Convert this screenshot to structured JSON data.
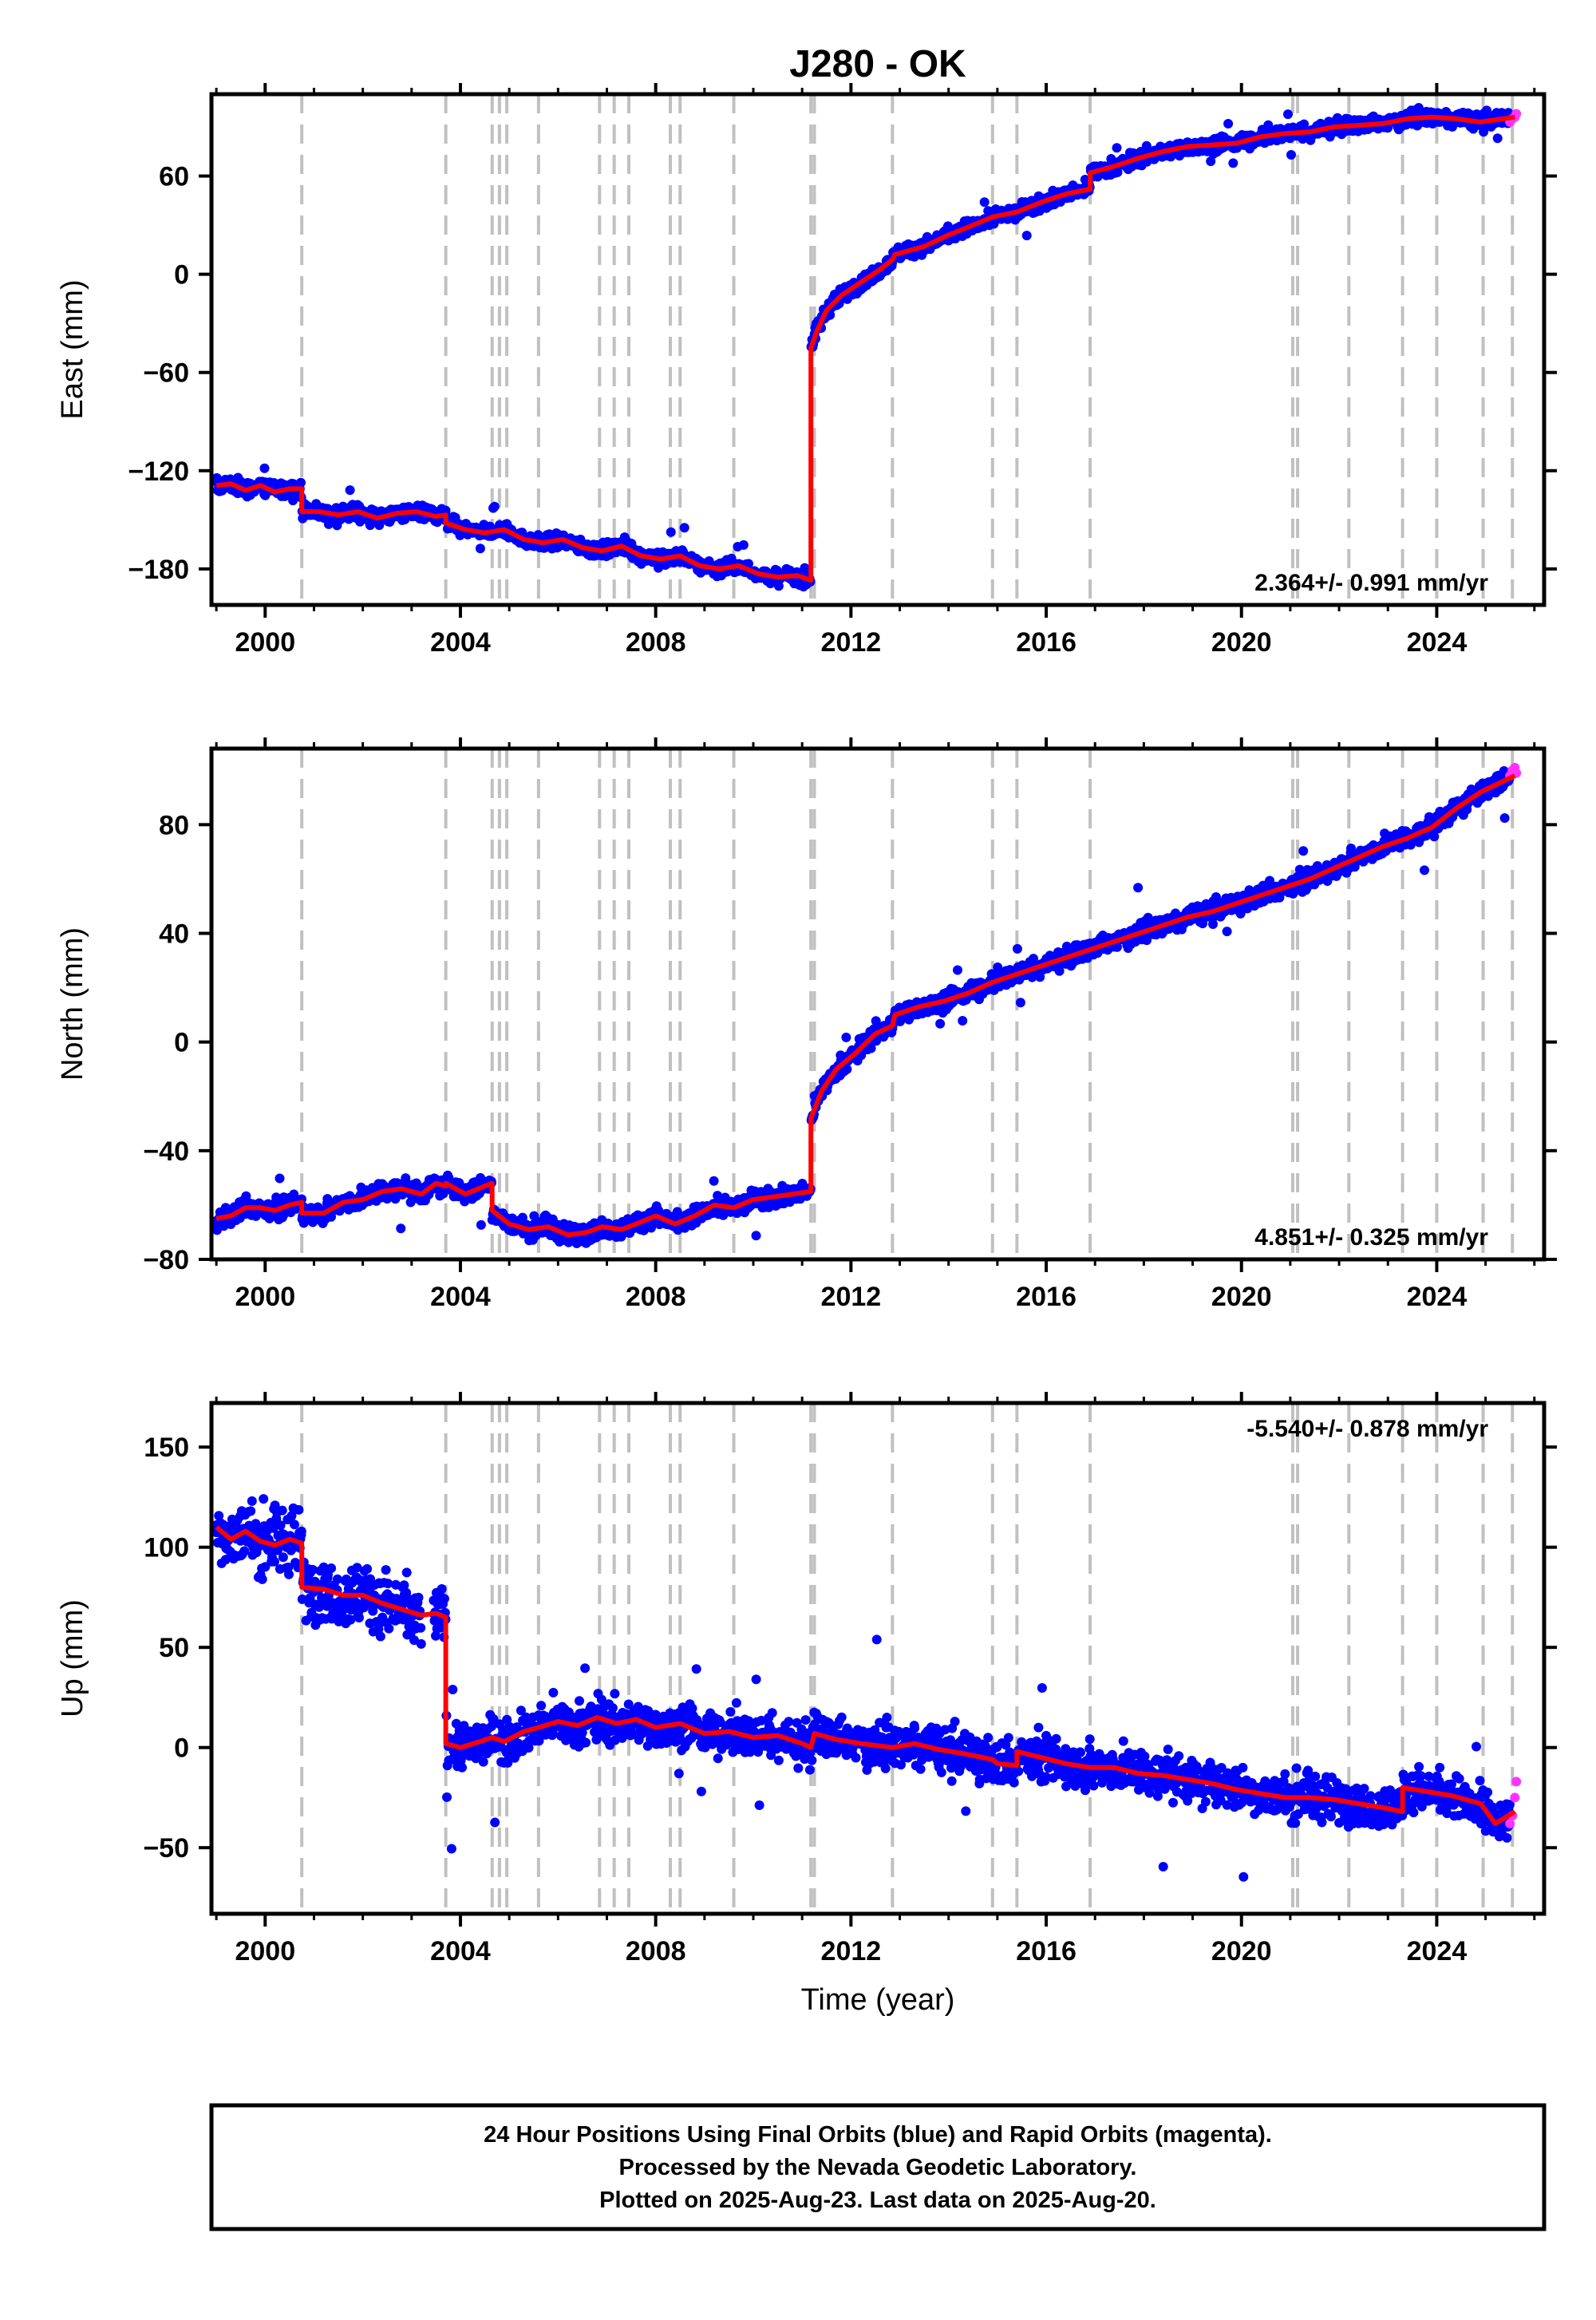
{
  "title": "J280 - OK",
  "xlabel": "Time (year)",
  "footer": {
    "line1": "24 Hour Positions Using Final Orbits (blue) and Rapid Orbits (magenta).",
    "line2": "Processed by the Nevada Geodetic Laboratory.",
    "line3": "Plotted on 2025-Aug-23. Last data on 2025-Aug-20."
  },
  "colors": {
    "final_orbits": "#0000ff",
    "rapid_orbits": "#ff33ff",
    "model": "#ff0000",
    "event_lines": "#c0c0c0"
  },
  "chart_data": [
    {
      "type": "scatter",
      "component": "East",
      "ylabel": "East (mm)",
      "xlim": [
        1998.9,
        2026.2
      ],
      "ylim": [
        -202,
        110
      ],
      "xticks": [
        2000,
        2004,
        2008,
        2012,
        2016,
        2020,
        2024
      ],
      "yticks": [
        -180,
        -120,
        -60,
        0,
        60
      ],
      "rate_label": "2.364+/- 0.991 mm/yr",
      "rate_position": "bottom-right",
      "event_lines": [
        2000.75,
        2003.7,
        2004.65,
        2004.8,
        2004.95,
        2005.6,
        2006.85,
        2007.15,
        2007.45,
        2008.3,
        2008.5,
        2009.6,
        2011.18,
        2011.25,
        2012.85,
        2014.9,
        2015.4,
        2016.9,
        2021.05,
        2021.15,
        2022.2,
        2023.3,
        2024.0,
        2024.95,
        2025.55
      ],
      "model": [
        [
          1999.0,
          -129
        ],
        [
          1999.3,
          -128
        ],
        [
          1999.6,
          -132
        ],
        [
          1999.9,
          -129
        ],
        [
          2000.2,
          -133
        ],
        [
          2000.5,
          -131
        ],
        [
          2000.75,
          -131
        ],
        [
          2000.75,
          -145
        ],
        [
          2001.1,
          -145
        ],
        [
          2001.5,
          -147
        ],
        [
          2001.9,
          -145
        ],
        [
          2002.3,
          -149
        ],
        [
          2002.7,
          -146
        ],
        [
          2003.1,
          -145
        ],
        [
          2003.5,
          -148
        ],
        [
          2003.7,
          -147
        ],
        [
          2003.7,
          -152
        ],
        [
          2004.1,
          -156
        ],
        [
          2004.5,
          -158
        ],
        [
          2004.9,
          -156
        ],
        [
          2005.3,
          -162
        ],
        [
          2005.7,
          -164
        ],
        [
          2006.1,
          -162
        ],
        [
          2006.5,
          -167
        ],
        [
          2006.9,
          -169
        ],
        [
          2007.3,
          -166
        ],
        [
          2007.7,
          -172
        ],
        [
          2008.1,
          -174
        ],
        [
          2008.5,
          -172
        ],
        [
          2008.9,
          -178
        ],
        [
          2009.3,
          -180
        ],
        [
          2009.7,
          -178
        ],
        [
          2010.1,
          -183
        ],
        [
          2010.5,
          -185
        ],
        [
          2010.9,
          -184
        ],
        [
          2011.18,
          -187
        ],
        [
          2011.18,
          -45
        ],
        [
          2011.3,
          -35
        ],
        [
          2011.5,
          -22
        ],
        [
          2011.8,
          -13
        ],
        [
          2012.2,
          -5
        ],
        [
          2012.6,
          3
        ],
        [
          2012.85,
          9
        ],
        [
          2012.9,
          12
        ],
        [
          2013.5,
          17
        ],
        [
          2014.0,
          24
        ],
        [
          2014.5,
          30
        ],
        [
          2014.9,
          35
        ],
        [
          2015.4,
          38
        ],
        [
          2015.9,
          44
        ],
        [
          2016.4,
          49
        ],
        [
          2016.9,
          52
        ],
        [
          2016.9,
          62
        ],
        [
          2017.4,
          66
        ],
        [
          2017.9,
          71
        ],
        [
          2018.4,
          75
        ],
        [
          2018.9,
          78
        ],
        [
          2019.4,
          79
        ],
        [
          2019.9,
          80
        ],
        [
          2020.4,
          84
        ],
        [
          2020.9,
          86
        ],
        [
          2021.4,
          87
        ],
        [
          2021.9,
          90
        ],
        [
          2022.4,
          91
        ],
        [
          2022.9,
          92
        ],
        [
          2023.4,
          95
        ],
        [
          2023.9,
          96
        ],
        [
          2024.4,
          95
        ],
        [
          2024.9,
          93
        ],
        [
          2025.6,
          96
        ]
      ],
      "rapid_points": [
        [
          2025.5,
          93
        ],
        [
          2025.55,
          95
        ],
        [
          2025.6,
          96
        ],
        [
          2025.63,
          98
        ]
      ]
    },
    {
      "type": "scatter",
      "component": "North",
      "ylabel": "North (mm)",
      "xlim": [
        1998.9,
        2026.2
      ],
      "ylim": [
        -80,
        108
      ],
      "xticks": [
        2000,
        2004,
        2008,
        2012,
        2016,
        2020,
        2024
      ],
      "yticks": [
        -80,
        -40,
        0,
        40,
        80
      ],
      "rate_label": "4.851+/- 0.325 mm/yr",
      "rate_position": "bottom-right",
      "event_lines": [
        2000.75,
        2003.7,
        2004.65,
        2004.8,
        2004.95,
        2005.6,
        2006.85,
        2007.15,
        2007.45,
        2008.3,
        2008.5,
        2009.6,
        2011.18,
        2011.25,
        2012.85,
        2014.9,
        2015.4,
        2016.9,
        2021.05,
        2021.15,
        2022.2,
        2023.3,
        2024.0,
        2024.95,
        2025.55
      ],
      "model": [
        [
          1999.0,
          -65
        ],
        [
          1999.3,
          -64
        ],
        [
          1999.6,
          -61
        ],
        [
          1999.9,
          -61
        ],
        [
          2000.2,
          -62
        ],
        [
          2000.5,
          -60
        ],
        [
          2000.75,
          -59
        ],
        [
          2000.75,
          -63
        ],
        [
          2001.2,
          -63
        ],
        [
          2001.6,
          -59
        ],
        [
          2002.0,
          -58
        ],
        [
          2002.4,
          -55
        ],
        [
          2002.8,
          -54
        ],
        [
          2003.2,
          -56
        ],
        [
          2003.5,
          -52
        ],
        [
          2003.7,
          -53
        ],
        [
          2003.7,
          -52
        ],
        [
          2004.1,
          -56
        ],
        [
          2004.5,
          -53
        ],
        [
          2004.65,
          -52
        ],
        [
          2004.65,
          -62
        ],
        [
          2005.0,
          -67
        ],
        [
          2005.4,
          -69
        ],
        [
          2005.8,
          -68
        ],
        [
          2006.2,
          -71
        ],
        [
          2006.6,
          -70
        ],
        [
          2006.9,
          -68
        ],
        [
          2007.3,
          -69
        ],
        [
          2007.6,
          -67
        ],
        [
          2008.0,
          -64
        ],
        [
          2008.4,
          -67
        ],
        [
          2008.8,
          -64
        ],
        [
          2009.2,
          -60
        ],
        [
          2009.6,
          -61
        ],
        [
          2010.0,
          -58
        ],
        [
          2010.4,
          -57
        ],
        [
          2010.8,
          -56
        ],
        [
          2011.18,
          -55
        ],
        [
          2011.18,
          -28
        ],
        [
          2011.4,
          -18
        ],
        [
          2011.7,
          -10
        ],
        [
          2012.1,
          -4
        ],
        [
          2012.5,
          3
        ],
        [
          2012.85,
          6
        ],
        [
          2012.9,
          10
        ],
        [
          2013.4,
          13
        ],
        [
          2013.9,
          15
        ],
        [
          2014.4,
          18
        ],
        [
          2014.9,
          22
        ],
        [
          2015.4,
          25
        ],
        [
          2015.9,
          28
        ],
        [
          2016.4,
          31
        ],
        [
          2016.9,
          34
        ],
        [
          2017.4,
          37
        ],
        [
          2017.9,
          40
        ],
        [
          2018.4,
          43
        ],
        [
          2018.9,
          46
        ],
        [
          2019.4,
          48
        ],
        [
          2019.9,
          51
        ],
        [
          2020.4,
          54
        ],
        [
          2020.9,
          57
        ],
        [
          2021.4,
          60
        ],
        [
          2021.9,
          64
        ],
        [
          2022.4,
          68
        ],
        [
          2022.9,
          72
        ],
        [
          2023.4,
          75
        ],
        [
          2023.9,
          79
        ],
        [
          2024.4,
          86
        ],
        [
          2024.9,
          92
        ],
        [
          2025.6,
          98
        ]
      ],
      "rapid_points": [
        [
          2025.5,
          98
        ],
        [
          2025.55,
          100
        ],
        [
          2025.6,
          101
        ],
        [
          2025.63,
          99
        ]
      ]
    },
    {
      "type": "scatter",
      "component": "Up",
      "ylabel": "Up (mm)",
      "xlabel": "Time (year)",
      "xlim": [
        1998.9,
        2026.2
      ],
      "ylim": [
        -83,
        172
      ],
      "xticks": [
        2000,
        2004,
        2008,
        2012,
        2016,
        2020,
        2024
      ],
      "yticks": [
        -50,
        0,
        50,
        100,
        150
      ],
      "rate_label": "-5.540+/- 0.878 mm/yr",
      "rate_position": "top-right",
      "event_lines": [
        2000.75,
        2003.7,
        2004.65,
        2004.8,
        2004.95,
        2005.6,
        2006.85,
        2007.15,
        2007.45,
        2008.3,
        2008.5,
        2009.6,
        2011.18,
        2011.25,
        2012.85,
        2014.9,
        2015.4,
        2016.9,
        2021.05,
        2021.15,
        2022.2,
        2023.3,
        2024.0,
        2024.95,
        2025.55
      ],
      "model": [
        [
          1999.0,
          110
        ],
        [
          1999.3,
          104
        ],
        [
          1999.6,
          108
        ],
        [
          1999.9,
          103
        ],
        [
          2000.2,
          101
        ],
        [
          2000.5,
          104
        ],
        [
          2000.75,
          102
        ],
        [
          2000.75,
          80
        ],
        [
          2001.2,
          79
        ],
        [
          2001.6,
          76
        ],
        [
          2002.0,
          76
        ],
        [
          2002.4,
          72
        ],
        [
          2002.8,
          69
        ],
        [
          2003.2,
          66
        ],
        [
          2003.5,
          67
        ],
        [
          2003.7,
          65
        ],
        [
          2003.7,
          2
        ],
        [
          2004.0,
          0
        ],
        [
          2004.4,
          3
        ],
        [
          2004.65,
          5
        ],
        [
          2004.9,
          3
        ],
        [
          2005.3,
          8
        ],
        [
          2005.6,
          10
        ],
        [
          2006.0,
          13
        ],
        [
          2006.4,
          11
        ],
        [
          2006.8,
          15
        ],
        [
          2007.2,
          12
        ],
        [
          2007.6,
          14
        ],
        [
          2008.0,
          10
        ],
        [
          2008.5,
          12
        ],
        [
          2009.0,
          7
        ],
        [
          2009.5,
          8
        ],
        [
          2010.0,
          5
        ],
        [
          2010.5,
          6
        ],
        [
          2011.0,
          2
        ],
        [
          2011.18,
          0
        ],
        [
          2011.25,
          7
        ],
        [
          2011.7,
          4
        ],
        [
          2012.2,
          2
        ],
        [
          2012.85,
          0
        ],
        [
          2013.3,
          2
        ],
        [
          2013.8,
          -1
        ],
        [
          2014.3,
          -3
        ],
        [
          2014.9,
          -6
        ],
        [
          2015.0,
          -8
        ],
        [
          2015.4,
          -9
        ],
        [
          2015.4,
          -2
        ],
        [
          2015.9,
          -5
        ],
        [
          2016.4,
          -8
        ],
        [
          2016.9,
          -10
        ],
        [
          2017.4,
          -10
        ],
        [
          2017.9,
          -13
        ],
        [
          2018.4,
          -14
        ],
        [
          2018.9,
          -16
        ],
        [
          2019.4,
          -18
        ],
        [
          2019.9,
          -21
        ],
        [
          2020.4,
          -23
        ],
        [
          2020.9,
          -25
        ],
        [
          2021.4,
          -25
        ],
        [
          2021.9,
          -26
        ],
        [
          2022.4,
          -28
        ],
        [
          2022.9,
          -30
        ],
        [
          2023.3,
          -32
        ],
        [
          2023.3,
          -20
        ],
        [
          2023.8,
          -22
        ],
        [
          2024.3,
          -24
        ],
        [
          2024.9,
          -28
        ],
        [
          2025.2,
          -38
        ],
        [
          2025.6,
          -32
        ]
      ],
      "rapid_points": [
        [
          2025.5,
          -38
        ],
        [
          2025.55,
          -34
        ],
        [
          2025.6,
          -25
        ],
        [
          2025.63,
          -17
        ]
      ]
    }
  ]
}
